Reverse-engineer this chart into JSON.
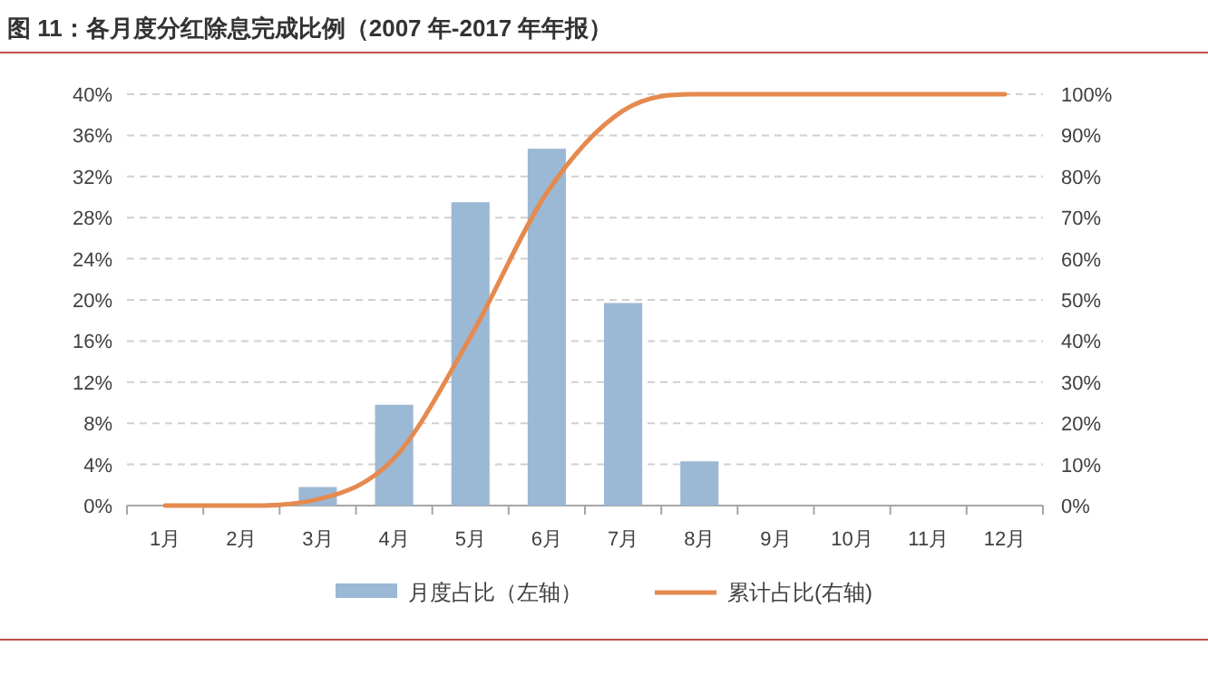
{
  "chart_data": {
    "type": "bar",
    "title": "图 11：各月度分红除息完成比例（2007 年-2017 年年报）",
    "categories": [
      "1月",
      "2月",
      "3月",
      "4月",
      "5月",
      "6月",
      "7月",
      "8月",
      "9月",
      "10月",
      "11月",
      "12月"
    ],
    "series": [
      {
        "name": "月度占比（左轴）",
        "color": "#9bb8d5",
        "values": [
          0,
          0,
          1.8,
          9.8,
          29.5,
          34.7,
          19.7,
          4.3,
          0,
          0,
          0,
          0
        ]
      },
      {
        "name": "累计占比(右轴)",
        "type": "line",
        "axis": "y2",
        "color": "#e58a4f",
        "values": [
          0,
          0,
          1.5,
          11.5,
          41,
          76,
          96,
          100,
          100,
          100,
          100,
          100
        ]
      }
    ],
    "ylim": [
      0,
      40
    ],
    "yticks": [
      {
        "value": 0,
        "label": "0%"
      },
      {
        "value": 4,
        "label": "4%"
      },
      {
        "value": 8,
        "label": "8%"
      },
      {
        "value": 12,
        "label": "12%"
      },
      {
        "value": 16,
        "label": "16%"
      },
      {
        "value": 20,
        "label": "20%"
      },
      {
        "value": 24,
        "label": "24%"
      },
      {
        "value": 28,
        "label": "28%"
      },
      {
        "value": 32,
        "label": "32%"
      },
      {
        "value": 36,
        "label": "36%"
      },
      {
        "value": 40,
        "label": "40%"
      }
    ],
    "y2lim": [
      0,
      100
    ],
    "y2ticks": [
      {
        "value": 0,
        "label": "0%"
      },
      {
        "value": 10,
        "label": "10%"
      },
      {
        "value": 20,
        "label": "20%"
      },
      {
        "value": 30,
        "label": "30%"
      },
      {
        "value": 40,
        "label": "40%"
      },
      {
        "value": 50,
        "label": "50%"
      },
      {
        "value": 60,
        "label": "60%"
      },
      {
        "value": 70,
        "label": "70%"
      },
      {
        "value": 80,
        "label": "80%"
      },
      {
        "value": 90,
        "label": "90%"
      },
      {
        "value": 100,
        "label": "100%"
      }
    ],
    "grid": "y",
    "legend": "bottom",
    "marker": "none",
    "line_style": "solid"
  }
}
